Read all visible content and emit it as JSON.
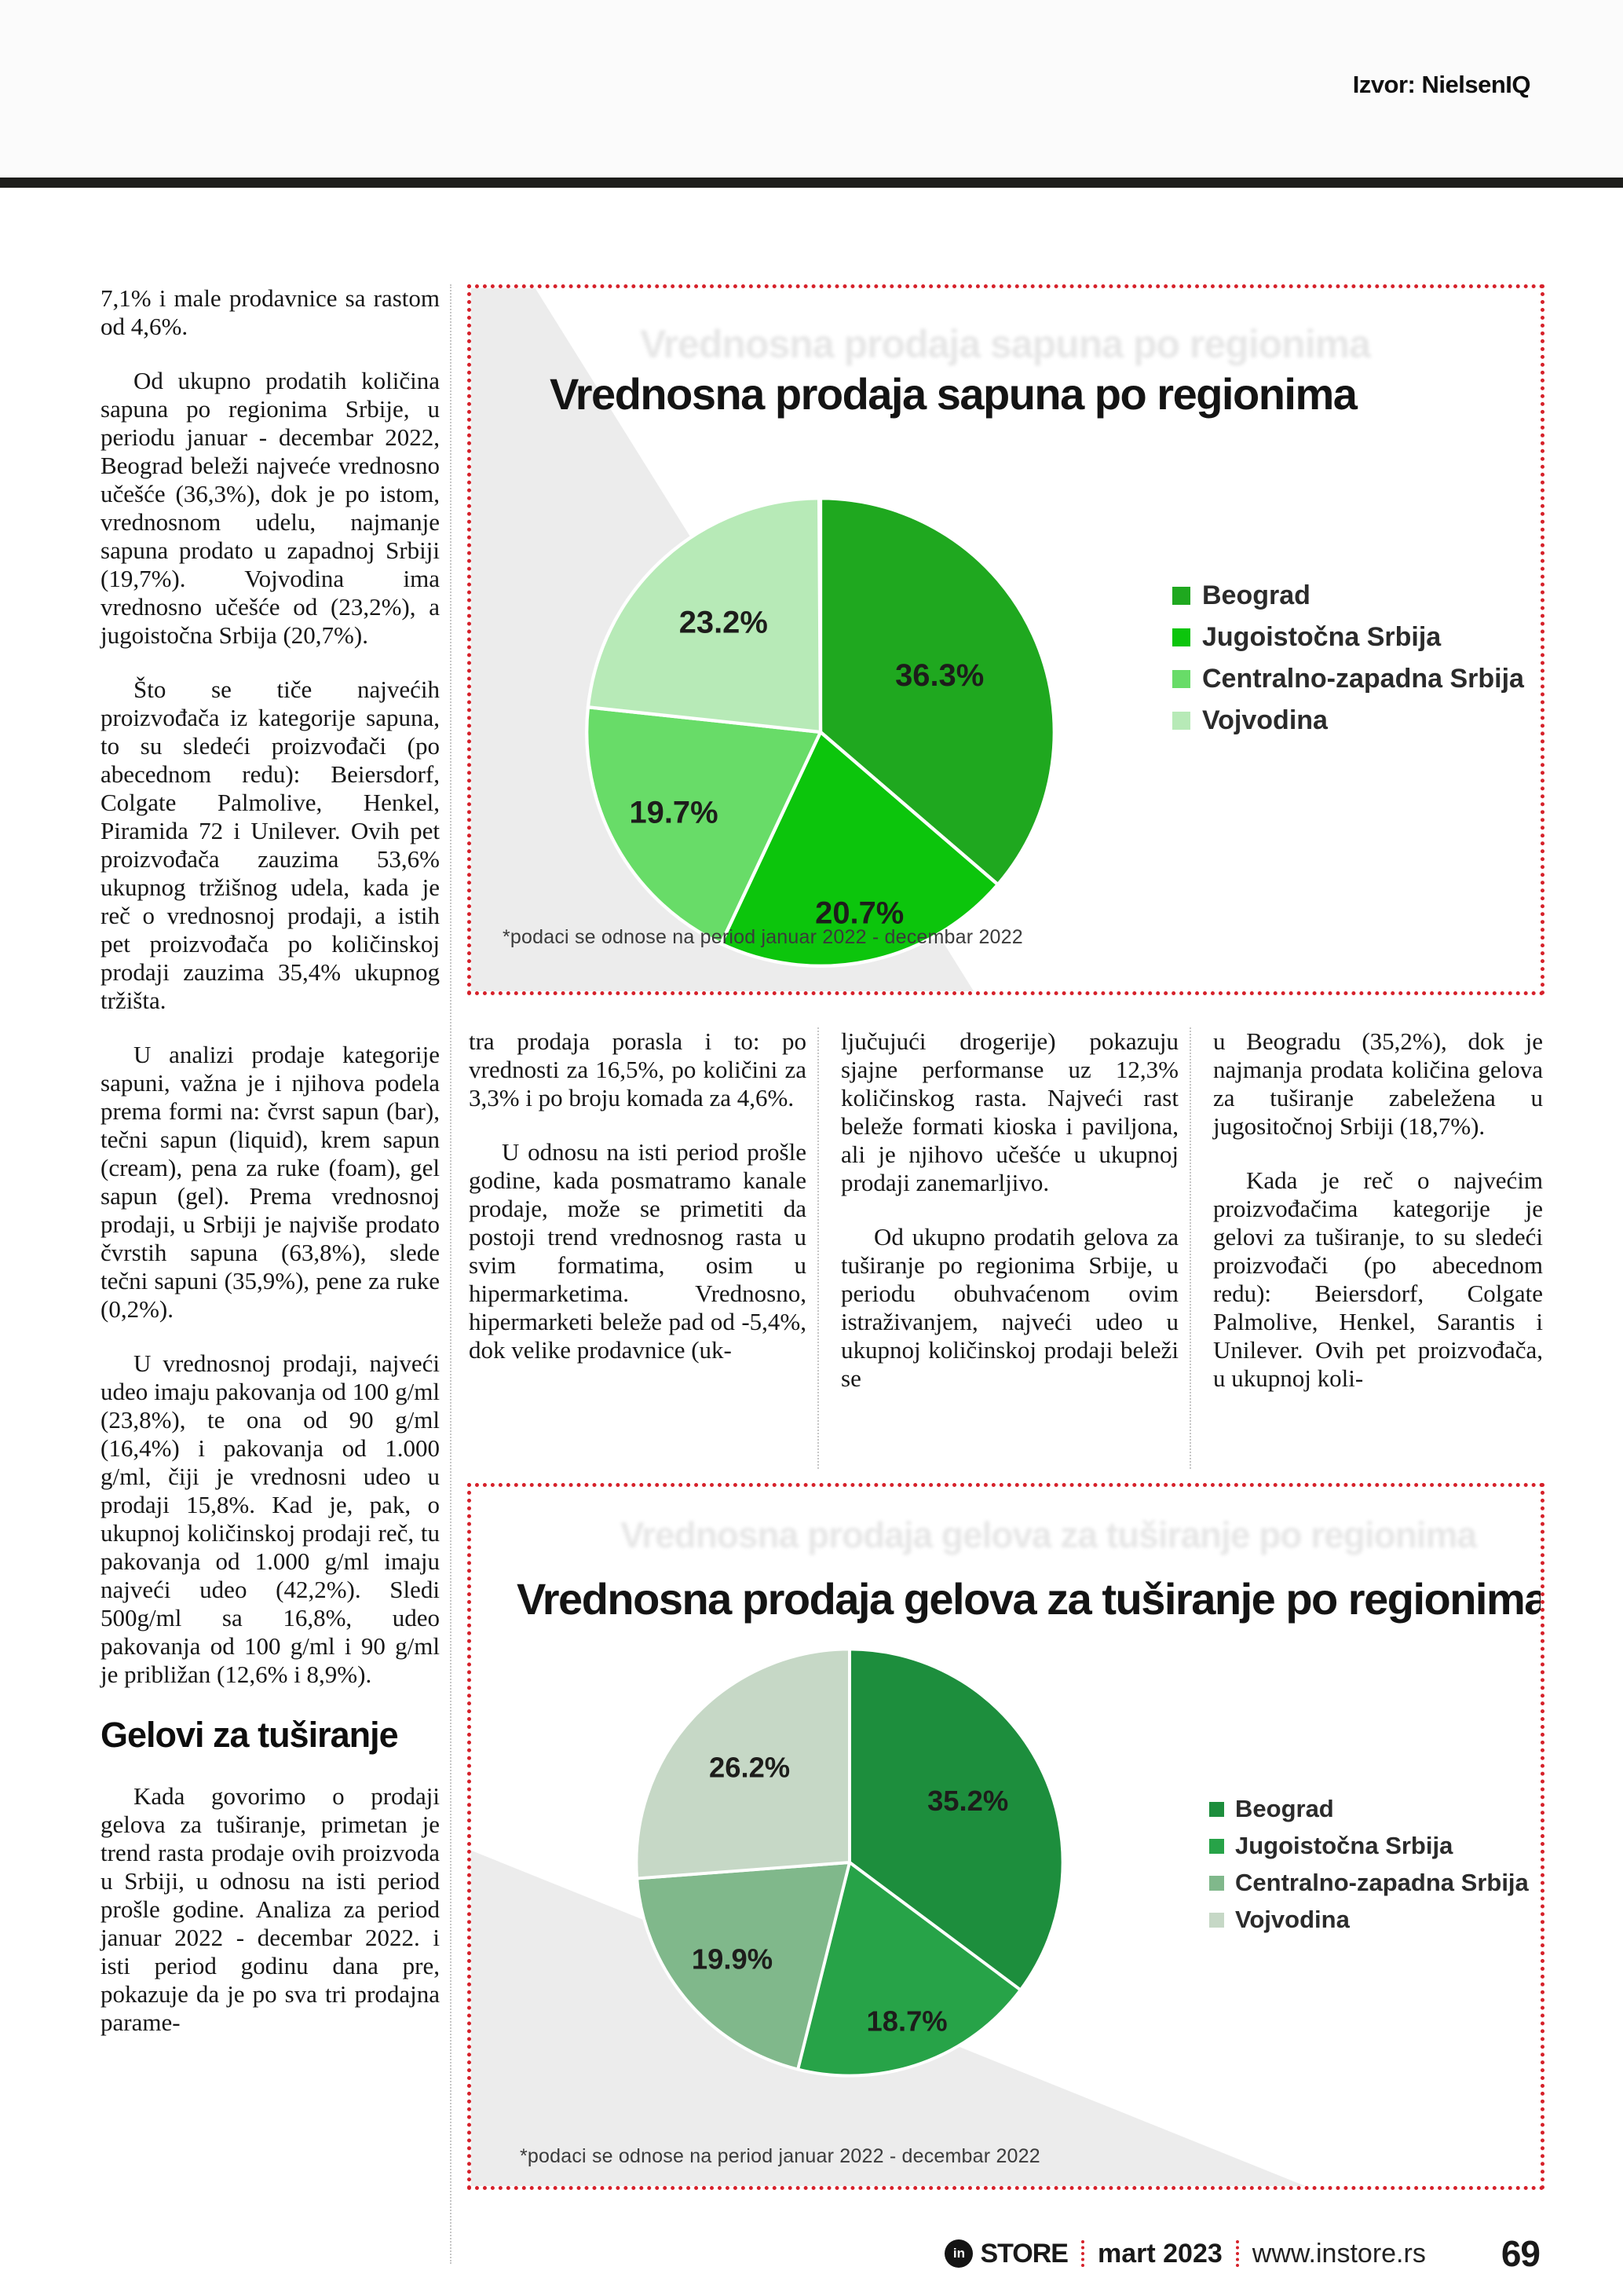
{
  "header": {
    "source": "Izvor: NielsenIQ"
  },
  "article": {
    "col1a": [
      "7,1% i male prodavnice sa rastom od 4,6%.",
      "Od ukupno prodatih količina sapuna po regionima Srbije, u periodu januar - decembar 2022, Beograd beleži najveće vrednosno učešće (36,3%), dok je po istom, vrednosnom udelu, najmanje sapuna prodato u zapadnoj Srbiji (19,7%). Vojvodina ima vrednosno učešće od (23,2%), a jugoistočna Srbija (20,7%).",
      "Što se tiče najvećih proizvođača iz kategorije sapuna, to su sledeći proizvođači (po abecednom redu): Beiersdorf, Colgate Palmolive, Henkel, Piramida 72 i Unilever. Ovih pet proizvođača zauzima 53,6% ukupnog tržišnog udela, kada je reč o vrednosnoj prodaji, a istih pet proizvođača po količinskoj prodaji zauzima 35,4% ukupnog tržišta.",
      "U analizi prodaje kategorije sapuni, važna je i njihova podela prema formi na: čvrst sapun (bar), tečni sapun (liquid), krem sapun (cream), pena za ruke (foam), gel sapun (gel). Prema vrednosnoj prodaji, u Srbiji je najviše prodato čvrstih sapuna (63,8%), slede tečni sapuni (35,9%), pene za ruke (0,2%).",
      "U vrednosnoj prodaji, najveći udeo imaju pakovanja od 100 g/ml (23,8%), te ona od 90 g/ml (16,4%) i pakovanja od 1.000 g/ml, čiji je vrednosni udeo u prodaji 15,8%. Kad je, pak, o ukupnoj količinskoj prodaji reč, tu pakovanja od 1.000 g/ml imaju najveći udeo (42,2%). Sledi 500g/ml sa 16,8%, udeo pakovanja od 100 g/ml i 90 g/ml je približan (12,6% i 8,9%)."
    ],
    "col1_heading": "Gelovi za tuširanje",
    "col1b": [
      "Kada govorimo o prodaji gelova za tuširanje, primetan je trend rasta prodaje ovih proizvoda u Srbiji, u odnosu na isti period prošle godine. Analiza za period januar 2022 - decembar 2022. i isti period godinu dana pre, pokazuje da je po sva tri prodajna parame-"
    ],
    "col2": [
      "tra prodaja porasla i to: po vrednosti za 16,5%, po količini za 3,3% i po broju komada za 4,6%.",
      "U odnosu na isti period prošle godine, kada posmatramo kanale prodaje, može se primetiti da postoji trend vrednosnog rasta u svim formatima, osim u hipermarketima. Vrednosno, hipermarketi beleže pad od -5,4%, dok velike prodavnice (uk-"
    ],
    "col3": [
      "ljučujući drogerije) pokazuju sjajne performanse uz 12,3% količinskog rasta. Najveći rast beleže formati kioska i paviljona, ali je njihovo učešće u ukupnoj prodaji zanemarljivo.",
      "Od ukupno prodatih gelova za tuširanje po regionima Srbije, u periodu obuhvaćenom ovim istraživanjem, najveći udeo u ukupnoj količinskoj prodaji beleži se"
    ],
    "col4": [
      "u Beogradu (35,2%), dok je najmanja prodata količina gelova za tuširanje zabeležena u jugositočnoj Srbiji (18,7%).",
      "Kada je reč o najvećim proizvođačima kategorije je gelovi za tuširanje, to su sledeći proizvođači (po abecednom redu): Beiersdorf, Colgate Palmolive, Henkel, Sarantis i Unilever. Ovih pet proizvođača, u ukupnoj koli-"
    ]
  },
  "chart_data": [
    {
      "type": "pie",
      "title": "Vrednosna prodaja sapuna po regionima",
      "footnote": "*podaci se odnose na period januar 2022 - decembar 2022",
      "legend_position": "right",
      "start_angle_deg": 0,
      "direction": "clockwise",
      "slices": [
        {
          "name": "Beograd",
          "value": 36.3,
          "label": "36.3%",
          "color": "#1fa81f",
          "label_r": 0.56
        },
        {
          "name": "Jugoistočna Srbija",
          "value": 20.7,
          "label": "20.7%",
          "color": "#0cc50c",
          "label_r": 0.8
        },
        {
          "name": "Centralno-zapadna Srbija",
          "value": 19.7,
          "label": "19.7%",
          "color": "#68dc68",
          "label_r": 0.72
        },
        {
          "name": "Vojvodina",
          "value": 23.2,
          "label": "23.2%",
          "color": "#b7eab7",
          "label_r": 0.62
        }
      ]
    },
    {
      "type": "pie",
      "title": "Vrednosna prodaja gelova za tuširanje po regionima",
      "footnote": "*podaci se odnose na period januar 2022 - decembar 2022",
      "legend_position": "right",
      "start_angle_deg": 0,
      "direction": "clockwise",
      "slices": [
        {
          "name": "Beograd",
          "value": 35.2,
          "label": "35.2%",
          "color": "#1d8e3d",
          "label_r": 0.62
        },
        {
          "name": "Jugoistočna Srbija",
          "value": 18.7,
          "label": "18.7%",
          "color": "#27a348",
          "label_r": 0.8
        },
        {
          "name": "Centralno-zapadna Srbija",
          "value": 19.9,
          "label": "19.9%",
          "color": "#80b88b",
          "label_r": 0.72
        },
        {
          "name": "Vojvodina",
          "value": 26.2,
          "label": "26.2%",
          "color": "#c6d8c6",
          "label_r": 0.64
        }
      ]
    }
  ],
  "footer": {
    "logo": "in",
    "brand": "STORE",
    "issue": "mart 2023",
    "site": "www.instore.rs",
    "page": "69"
  }
}
